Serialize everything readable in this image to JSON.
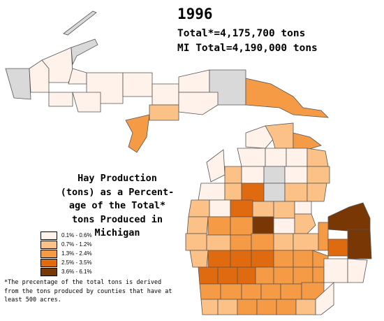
{
  "header": {
    "year": "1996",
    "total_line": "Total*=4,175,700 tons",
    "mi_total_line": "MI Total=4,190,000 tons"
  },
  "legend": {
    "title_lines": [
      "Hay Production",
      "(tons) as a Percent-",
      "age of the Total*",
      "tons Produced in",
      "Michigan"
    ],
    "classes": [
      {
        "label": "0.1% - 0.6%",
        "color": "#fff2ea"
      },
      {
        "label": "0.7% - 1.2%",
        "color": "#fbc187"
      },
      {
        "label": "1.3% - 2.4%",
        "color": "#f59a45"
      },
      {
        "label": "2.5% - 3.5%",
        "color": "#df6a10"
      },
      {
        "label": "3.6% - 6.1%",
        "color": "#7a3706"
      }
    ],
    "no_data_color": "#d9d9d9"
  },
  "footnote": "*The precentage of the total tons is derived from the tons produced by counties that have at least 500 acres."
}
